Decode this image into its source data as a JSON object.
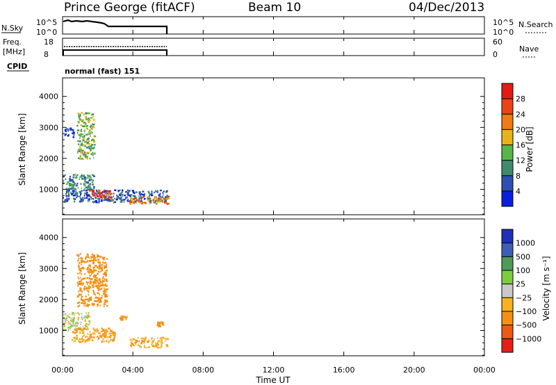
{
  "header": {
    "station": "Prince George (fitACF)",
    "beam": "Beam 10",
    "date": "04/Dec/2013"
  },
  "strips": {
    "nsky_label": "N.Sky",
    "nsky_ticks": [
      "10^5",
      "10^0"
    ],
    "nsearch_label": "N.Search",
    "nsearch_ticks": [
      "10^5",
      "10^0"
    ],
    "freq_label": "Freq.",
    "freq_unit": "[MHz]",
    "freq_ticks": [
      "18",
      "8"
    ],
    "nave_label": "Nave",
    "nave_ticks": [
      "60",
      "0"
    ],
    "cpid_label": "CPID",
    "cpid_value": "normal (fast) 151"
  },
  "axes": {
    "ylabel": "Slant Range [km]",
    "xlabel": "Time UT",
    "xticks": [
      "00:00",
      "04:00",
      "08:00",
      "12:00",
      "16:00",
      "20:00",
      "00:00"
    ],
    "yticks": [
      "1000",
      "2000",
      "3000",
      "4000"
    ]
  },
  "power_bar": {
    "label": "Power [dB]",
    "ticks": [
      "4",
      "8",
      "12",
      "16",
      "20",
      "24",
      "28"
    ],
    "colors": [
      "#0a1fdc",
      "#2f4fb0",
      "#3f8a6a",
      "#57b54a",
      "#e9b21a",
      "#f17a12",
      "#ea4416",
      "#e31b16"
    ]
  },
  "velocity_bar": {
    "label": "Velocity [m s⁻¹]",
    "ticks": [
      "1000",
      "500",
      "100",
      "25",
      "−25",
      "−100",
      "−500",
      "−1000"
    ],
    "colors": [
      "#1f2fb8",
      "#3d5fb3",
      "#4f9a58",
      "#7dcc3d",
      "#c9c9c9",
      "#f6b21f",
      "#f49015",
      "#ed5a14",
      "#e51e18"
    ]
  },
  "chart_data": [
    {
      "type": "heatmap",
      "title": "Power [dB]",
      "xlabel": "Time UT",
      "ylabel": "Slant Range [km]",
      "xlim": [
        "00:00",
        "24:00"
      ],
      "ylim": [
        180,
        4600
      ],
      "value_range": [
        0,
        30
      ],
      "series": [
        {
          "x": [
            0.0,
            6.0
          ],
          "y": [
            600,
            1000
          ],
          "value": 6
        },
        {
          "x": [
            0.0,
            1.8
          ],
          "y": [
            1000,
            1500
          ],
          "value": 10
        },
        {
          "x": [
            0.8,
            1.8
          ],
          "y": [
            2000,
            3500
          ],
          "value": 14
        },
        {
          "x": [
            1.5,
            2.8
          ],
          "y": [
            700,
            1000
          ],
          "value": 28
        },
        {
          "x": [
            3.8,
            6.0
          ],
          "y": [
            550,
            800
          ],
          "value": 22
        },
        {
          "x": [
            0.1,
            0.6
          ],
          "y": [
            2700,
            3000
          ],
          "value": 4
        }
      ]
    },
    {
      "type": "heatmap",
      "title": "Velocity [m s⁻¹]",
      "xlabel": "Time UT",
      "ylabel": "Slant Range [km]",
      "xlim": [
        "00:00",
        "24:00"
      ],
      "ylim": [
        180,
        4600
      ],
      "value_range": [
        -1000,
        1000
      ],
      "series": [
        {
          "x": [
            0.0,
            1.5
          ],
          "y": [
            1000,
            1600
          ],
          "value": 0
        },
        {
          "x": [
            0.5,
            3.0
          ],
          "y": [
            650,
            1100
          ],
          "value": -100
        },
        {
          "x": [
            0.8,
            2.5
          ],
          "y": [
            1800,
            3500
          ],
          "value": -300
        },
        {
          "x": [
            3.8,
            6.0
          ],
          "y": [
            450,
            800
          ],
          "value": -75
        },
        {
          "x": [
            3.2,
            3.7
          ],
          "y": [
            1350,
            1500
          ],
          "value": -150
        },
        {
          "x": [
            5.3,
            5.7
          ],
          "y": [
            1150,
            1300
          ],
          "value": -150
        }
      ]
    }
  ]
}
